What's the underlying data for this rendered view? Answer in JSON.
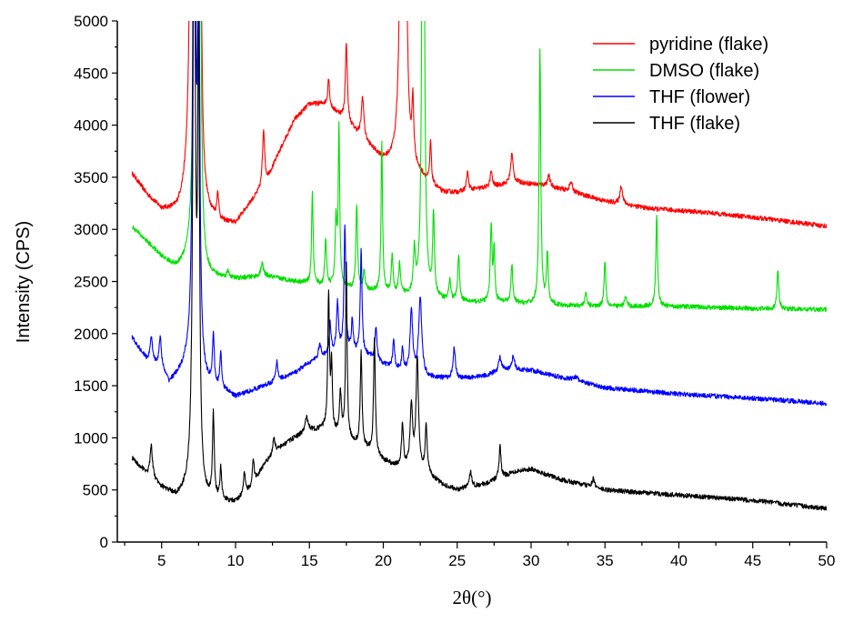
{
  "chart_data": {
    "type": "line",
    "xlabel": "2θ(°)",
    "ylabel": "Intensity (CPS)",
    "xlim": [
      2,
      50
    ],
    "ylim": [
      0,
      5000
    ],
    "x_ticks": [
      5,
      10,
      15,
      20,
      25,
      30,
      35,
      40,
      45,
      50
    ],
    "y_ticks": [
      0,
      500,
      1000,
      1500,
      2000,
      2500,
      3000,
      3500,
      4000,
      4500,
      5000
    ],
    "grid": false,
    "legend_position": "top-right",
    "series": [
      {
        "name": "pyridine (flake)",
        "color": "#ff0000",
        "baseline": [
          [
            3,
            3530
          ],
          [
            4,
            3330
          ],
          [
            5,
            3180
          ],
          [
            6,
            3150
          ],
          [
            6.8,
            3250
          ],
          [
            8,
            3120
          ],
          [
            9,
            3050
          ],
          [
            10,
            3050
          ],
          [
            11,
            3250
          ],
          [
            12,
            3420
          ],
          [
            13,
            3750
          ],
          [
            14,
            4050
          ],
          [
            15,
            4200
          ],
          [
            16,
            4200
          ],
          [
            17,
            4100
          ],
          [
            18,
            3950
          ],
          [
            19,
            3800
          ],
          [
            20,
            3650
          ],
          [
            21,
            3600
          ],
          [
            22,
            3550
          ],
          [
            23,
            3450
          ],
          [
            24,
            3350
          ],
          [
            25,
            3350
          ],
          [
            27,
            3400
          ],
          [
            29,
            3450
          ],
          [
            31,
            3420
          ],
          [
            33,
            3350
          ],
          [
            35,
            3270
          ],
          [
            38,
            3200
          ],
          [
            42,
            3160
          ],
          [
            46,
            3100
          ],
          [
            50,
            3030
          ]
        ],
        "peaks": [
          [
            7.1,
            9000,
            0.12
          ],
          [
            7.6,
            3500,
            0.1
          ],
          [
            8.8,
            250,
            0.07
          ],
          [
            11.9,
            550,
            0.09
          ],
          [
            16.3,
            280,
            0.07
          ],
          [
            17.5,
            750,
            0.08
          ],
          [
            18.6,
            400,
            0.1
          ],
          [
            21.3,
            9000,
            0.1
          ],
          [
            21.5,
            2500,
            0.08
          ],
          [
            22.0,
            550,
            0.07
          ],
          [
            23.2,
            400,
            0.06
          ],
          [
            25.7,
            180,
            0.08
          ],
          [
            27.3,
            150,
            0.08
          ],
          [
            28.7,
            280,
            0.1
          ],
          [
            31.2,
            100,
            0.1
          ],
          [
            32.7,
            90,
            0.12
          ],
          [
            36.1,
            180,
            0.1
          ]
        ]
      },
      {
        "name": "DMSO (flake)",
        "color": "#00e000",
        "baseline": [
          [
            3,
            3020
          ],
          [
            4,
            2880
          ],
          [
            5,
            2730
          ],
          [
            6,
            2620
          ],
          [
            6.8,
            2680
          ],
          [
            8,
            2530
          ],
          [
            10,
            2520
          ],
          [
            12,
            2550
          ],
          [
            14,
            2500
          ],
          [
            15,
            2480
          ],
          [
            16,
            2450
          ],
          [
            17,
            2450
          ],
          [
            18,
            2420
          ],
          [
            20,
            2400
          ],
          [
            22,
            2350
          ],
          [
            24,
            2320
          ],
          [
            26,
            2300
          ],
          [
            28,
            2300
          ],
          [
            30,
            2280
          ],
          [
            32,
            2270
          ],
          [
            35,
            2260
          ],
          [
            40,
            2260
          ],
          [
            45,
            2240
          ],
          [
            50,
            2230
          ]
        ],
        "peaks": [
          [
            7.3,
            8000,
            0.1
          ],
          [
            7.6,
            3500,
            0.08
          ],
          [
            9.5,
            60,
            0.1
          ],
          [
            11.8,
            120,
            0.1
          ],
          [
            15.2,
            900,
            0.06
          ],
          [
            16.1,
            450,
            0.07
          ],
          [
            16.8,
            600,
            0.07
          ],
          [
            17.0,
            1500,
            0.06
          ],
          [
            18.2,
            800,
            0.07
          ],
          [
            18.7,
            180,
            0.07
          ],
          [
            19.9,
            1420,
            0.06
          ],
          [
            20.6,
            350,
            0.07
          ],
          [
            21.1,
            280,
            0.07
          ],
          [
            22.1,
            400,
            0.08
          ],
          [
            22.7,
            7000,
            0.08
          ],
          [
            23.4,
            780,
            0.07
          ],
          [
            24.5,
            200,
            0.07
          ],
          [
            25.1,
            450,
            0.07
          ],
          [
            27.3,
            740,
            0.07
          ],
          [
            27.5,
            480,
            0.06
          ],
          [
            28.7,
            370,
            0.07
          ],
          [
            30.6,
            2420,
            0.07
          ],
          [
            31.1,
            480,
            0.07
          ],
          [
            33.7,
            120,
            0.08
          ],
          [
            35.0,
            440,
            0.07
          ],
          [
            36.4,
            100,
            0.08
          ],
          [
            38.5,
            860,
            0.07
          ],
          [
            46.7,
            370,
            0.07
          ]
        ]
      },
      {
        "name": "THF (flower)",
        "color": "#0000ff",
        "baseline": [
          [
            3,
            1960
          ],
          [
            4,
            1740
          ],
          [
            5,
            1650
          ],
          [
            5.5,
            1520
          ],
          [
            6.8,
            1680
          ],
          [
            8,
            1500
          ],
          [
            9.5,
            1430
          ],
          [
            10,
            1390
          ],
          [
            12,
            1500
          ],
          [
            14,
            1620
          ],
          [
            15,
            1720
          ],
          [
            16,
            1780
          ],
          [
            17,
            1840
          ],
          [
            18,
            1820
          ],
          [
            19,
            1780
          ],
          [
            20,
            1700
          ],
          [
            21,
            1650
          ],
          [
            22,
            1620
          ],
          [
            23,
            1580
          ],
          [
            25,
            1560
          ],
          [
            27,
            1600
          ],
          [
            28,
            1650
          ],
          [
            30,
            1650
          ],
          [
            32,
            1580
          ],
          [
            35,
            1480
          ],
          [
            40,
            1420
          ],
          [
            45,
            1380
          ],
          [
            50,
            1330
          ]
        ],
        "peaks": [
          [
            4.3,
            250,
            0.1
          ],
          [
            4.9,
            280,
            0.1
          ],
          [
            7.2,
            6000,
            0.1
          ],
          [
            7.5,
            4500,
            0.08
          ],
          [
            8.5,
            480,
            0.07
          ],
          [
            9.0,
            350,
            0.07
          ],
          [
            12.8,
            180,
            0.08
          ],
          [
            15.7,
            130,
            0.1
          ],
          [
            16.4,
            300,
            0.07
          ],
          [
            16.9,
            450,
            0.08
          ],
          [
            17.4,
            1200,
            0.07
          ],
          [
            17.9,
            300,
            0.07
          ],
          [
            18.5,
            1000,
            0.07
          ],
          [
            19.5,
            320,
            0.08
          ],
          [
            20.7,
            250,
            0.08
          ],
          [
            21.3,
            200,
            0.07
          ],
          [
            21.9,
            600,
            0.1
          ],
          [
            22.5,
            750,
            0.12
          ],
          [
            24.8,
            300,
            0.1
          ],
          [
            27.9,
            130,
            0.1
          ],
          [
            28.8,
            140,
            0.1
          ],
          [
            33.0,
            40,
            0.2
          ]
        ]
      },
      {
        "name": "THF (flake)",
        "color": "#000000",
        "baseline": [
          [
            3,
            800
          ],
          [
            4,
            650
          ],
          [
            5,
            520
          ],
          [
            6,
            430
          ],
          [
            6.8,
            480
          ],
          [
            8,
            400
          ],
          [
            9.5,
            380
          ],
          [
            10,
            380
          ],
          [
            11,
            500
          ],
          [
            12,
            750
          ],
          [
            13,
            900
          ],
          [
            14,
            1000
          ],
          [
            15,
            1070
          ],
          [
            16,
            1080
          ],
          [
            17,
            1020
          ],
          [
            18,
            950
          ],
          [
            19,
            880
          ],
          [
            20,
            780
          ],
          [
            21,
            720
          ],
          [
            22,
            700
          ],
          [
            23,
            650
          ],
          [
            24,
            550
          ],
          [
            25,
            500
          ],
          [
            27,
            560
          ],
          [
            29,
            680
          ],
          [
            30,
            700
          ],
          [
            32,
            600
          ],
          [
            35,
            500
          ],
          [
            40,
            450
          ],
          [
            45,
            400
          ],
          [
            50,
            320
          ]
        ],
        "peaks": [
          [
            4.3,
            300,
            0.1
          ],
          [
            7.2,
            6000,
            0.1
          ],
          [
            7.5,
            4000,
            0.08
          ],
          [
            8.5,
            800,
            0.07
          ],
          [
            9.0,
            300,
            0.07
          ],
          [
            10.6,
            200,
            0.08
          ],
          [
            11.2,
            230,
            0.08
          ],
          [
            12.6,
            150,
            0.1
          ],
          [
            14.8,
            150,
            0.1
          ],
          [
            16.3,
            1300,
            0.07
          ],
          [
            16.5,
            600,
            0.06
          ],
          [
            17.1,
            400,
            0.08
          ],
          [
            17.5,
            1650,
            0.06
          ],
          [
            18.5,
            900,
            0.07
          ],
          [
            19.4,
            1100,
            0.07
          ],
          [
            21.3,
            400,
            0.08
          ],
          [
            21.9,
            600,
            0.1
          ],
          [
            22.3,
            1050,
            0.1
          ],
          [
            22.9,
            450,
            0.08
          ],
          [
            25.9,
            150,
            0.1
          ],
          [
            27.9,
            300,
            0.08
          ],
          [
            34.2,
            80,
            0.1
          ]
        ]
      }
    ]
  }
}
